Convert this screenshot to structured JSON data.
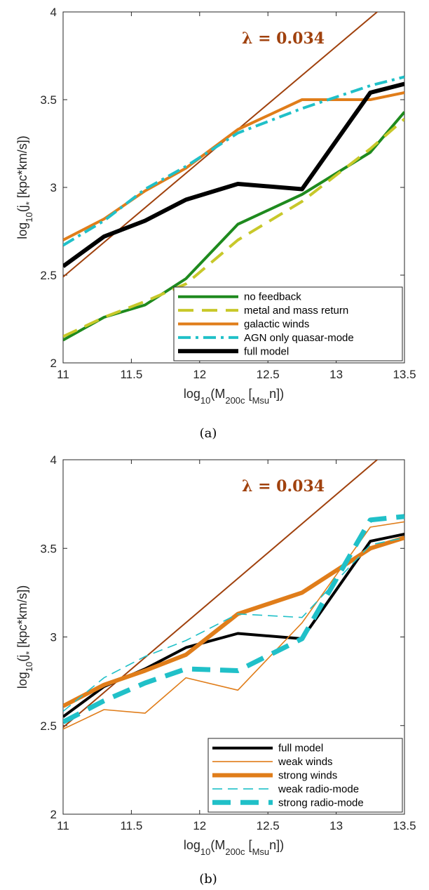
{
  "chart_data": [
    {
      "type": "line",
      "panel_label": "(a)",
      "xlabel": "log10(M200c [Msun])",
      "ylabel": "log10(j* [kpc*km/s])",
      "xlim": [
        11,
        13.5
      ],
      "ylim": [
        2,
        4
      ],
      "xticks": [
        "11",
        "11.5",
        "12",
        "12.5",
        "13",
        "13.5"
      ],
      "yticks": [
        "2",
        "2.5",
        "3",
        "3.5",
        "4"
      ],
      "annotation": "λ = 0.034",
      "reference_line": {
        "x": [
          11,
          13.3
        ],
        "y": [
          2.49,
          4.0
        ],
        "color": "#a0410d"
      },
      "legend_position": "bottom-right",
      "series": [
        {
          "name": "no feedback",
          "color": "#1e8a1e",
          "style": "solid",
          "width": 4,
          "x": [
            11,
            11.3,
            11.6,
            11.9,
            12.28,
            12.75,
            13.25,
            13.5
          ],
          "y": [
            2.13,
            2.26,
            2.33,
            2.48,
            2.79,
            2.96,
            3.2,
            3.43
          ]
        },
        {
          "name": "metal and mass return",
          "color": "#c8c82a",
          "style": "dashed",
          "width": 4,
          "x": [
            11,
            11.3,
            11.6,
            11.9,
            12.28,
            12.75,
            13.25,
            13.5
          ],
          "y": [
            2.15,
            2.26,
            2.35,
            2.45,
            2.7,
            2.92,
            3.22,
            3.39
          ]
        },
        {
          "name": "galactic winds",
          "color": "#e07d1a",
          "style": "solid",
          "width": 4,
          "x": [
            11,
            11.3,
            11.6,
            11.9,
            12.28,
            12.75,
            13.25,
            13.5
          ],
          "y": [
            2.7,
            2.82,
            2.98,
            3.11,
            3.33,
            3.5,
            3.5,
            3.54
          ]
        },
        {
          "name": "AGN only quasar-mode",
          "color": "#20c0c8",
          "style": "dashdot",
          "width": 4,
          "x": [
            11,
            11.3,
            11.6,
            11.9,
            12.28,
            12.75,
            13.25,
            13.5
          ],
          "y": [
            2.67,
            2.81,
            2.99,
            3.12,
            3.31,
            3.45,
            3.58,
            3.63
          ]
        },
        {
          "name": "full model",
          "color": "#000000",
          "style": "solid",
          "width": 6,
          "x": [
            11,
            11.3,
            11.6,
            11.9,
            12.28,
            12.75,
            13.25,
            13.5
          ],
          "y": [
            2.55,
            2.72,
            2.81,
            2.93,
            3.02,
            2.99,
            3.54,
            3.59
          ]
        }
      ]
    },
    {
      "type": "line",
      "panel_label": "(b)",
      "xlabel": "log10(M200c [Msun])",
      "ylabel": "log10(j* [kpc*km/s])",
      "xlim": [
        11,
        13.5
      ],
      "ylim": [
        2,
        4
      ],
      "xticks": [
        "11",
        "11.5",
        "12",
        "12.5",
        "13",
        "13.5"
      ],
      "yticks": [
        "2",
        "2.5",
        "3",
        "3.5",
        "4"
      ],
      "annotation": "λ = 0.034",
      "reference_line": {
        "x": [
          11,
          13.3
        ],
        "y": [
          2.49,
          4.0
        ],
        "color": "#a0410d"
      },
      "legend_position": "bottom-right",
      "series": [
        {
          "name": "full model",
          "color": "#000000",
          "style": "solid",
          "width": 4,
          "x": [
            11,
            11.3,
            11.6,
            11.9,
            12.28,
            12.75,
            13.25,
            13.5
          ],
          "y": [
            2.55,
            2.72,
            2.82,
            2.94,
            3.02,
            2.99,
            3.54,
            3.58
          ]
        },
        {
          "name": "weak winds",
          "color": "#e07d1a",
          "style": "solid",
          "width": 1.6,
          "x": [
            11,
            11.3,
            11.6,
            11.9,
            12.28,
            12.75,
            13.25,
            13.5
          ],
          "y": [
            2.48,
            2.59,
            2.57,
            2.77,
            2.7,
            3.08,
            3.62,
            3.65
          ]
        },
        {
          "name": "strong winds",
          "color": "#e07d1a",
          "style": "solid",
          "width": 6,
          "x": [
            11,
            11.3,
            11.6,
            11.9,
            12.28,
            12.75,
            13.25,
            13.5
          ],
          "y": [
            2.61,
            2.73,
            2.81,
            2.9,
            3.13,
            3.25,
            3.5,
            3.56
          ]
        },
        {
          "name": "weak radio-mode",
          "color": "#20c0c8",
          "style": "dashed",
          "width": 1.6,
          "x": [
            11,
            11.3,
            11.6,
            11.9,
            12.28,
            12.75,
            13.25,
            13.5
          ],
          "y": [
            2.58,
            2.77,
            2.89,
            2.98,
            3.13,
            3.11,
            3.52,
            3.56
          ]
        },
        {
          "name": "strong radio-mode",
          "color": "#20c0c8",
          "style": "dashed",
          "width": 7,
          "x": [
            11,
            11.3,
            11.6,
            11.9,
            12.28,
            12.75,
            13.25,
            13.5
          ],
          "y": [
            2.52,
            2.64,
            2.74,
            2.82,
            2.81,
            2.99,
            3.66,
            3.68
          ]
        }
      ]
    }
  ]
}
